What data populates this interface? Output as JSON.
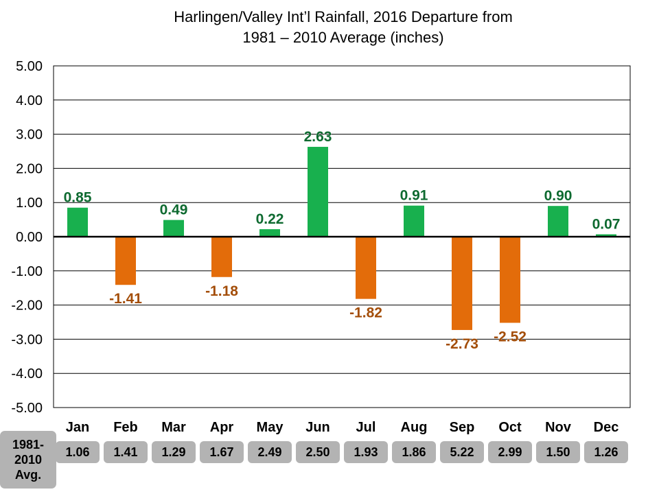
{
  "title_line1": "Harlingen/Valley Int’l Rainfall, 2016 Departure from",
  "title_line2": "1981 – 2010 Average (inches)",
  "colors": {
    "positive": "#18b04e",
    "negative": "#e36c0a",
    "positive_label": "#0e6a30",
    "negative_label": "#a34d08",
    "avg_box": "#b3b3b3"
  },
  "chart_data": {
    "type": "bar",
    "title": "Harlingen/Valley Int’l Rainfall, 2016 Departure from 1981 – 2010 Average (inches)",
    "categories": [
      "Jan",
      "Feb",
      "Mar",
      "Apr",
      "May",
      "Jun",
      "Jul",
      "Aug",
      "Sep",
      "Oct",
      "Nov",
      "Dec"
    ],
    "values": [
      0.85,
      -1.41,
      0.49,
      -1.18,
      0.22,
      2.63,
      -1.82,
      0.91,
      -2.73,
      -2.52,
      0.9,
      0.07
    ],
    "value_labels": [
      "0.85",
      "-1.41",
      "0.49",
      "-1.18",
      "0.22",
      "2.63",
      "-1.82",
      "0.91",
      "-2.73",
      "-2.52",
      "0.90",
      "0.07"
    ],
    "ylim": [
      -5,
      5
    ],
    "yticks": [
      5,
      4,
      3,
      2,
      1,
      0,
      -1,
      -2,
      -3,
      -4,
      -5
    ],
    "ytick_labels": [
      "5.00",
      "4.00",
      "3.00",
      "2.00",
      "1.00",
      "0.00",
      "-1.00",
      "-2.00",
      "-3.00",
      "-4.00",
      "-5.00"
    ],
    "grid": true,
    "legend": "none"
  },
  "averages": {
    "label": "1981-\n2010\nAvg.",
    "values": [
      "1.06",
      "1.41",
      "1.29",
      "1.67",
      "2.49",
      "2.50",
      "1.93",
      "1.86",
      "5.22",
      "2.99",
      "1.50",
      "1.26"
    ]
  }
}
